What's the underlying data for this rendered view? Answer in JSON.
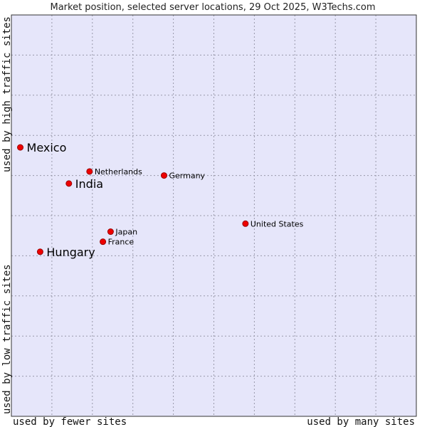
{
  "chart_data": {
    "type": "scatter",
    "title": "Market position, selected server locations, 29 Oct 2025, W3Techs.com",
    "xlabel_left": "used by fewer sites",
    "xlabel_right": "used by many sites",
    "ylabel_bottom": "used by low traffic sites",
    "ylabel_top": "used by high traffic sites",
    "xlim": [
      0,
      10
    ],
    "ylim": [
      0,
      10
    ],
    "grid": true,
    "points": [
      {
        "name": "Mexico",
        "x": 0.22,
        "y": 6.7,
        "highlight": true
      },
      {
        "name": "Netherlands",
        "x": 1.93,
        "y": 6.1,
        "highlight": false
      },
      {
        "name": "India",
        "x": 1.42,
        "y": 5.8,
        "highlight": true
      },
      {
        "name": "Germany",
        "x": 3.77,
        "y": 6.0,
        "highlight": false
      },
      {
        "name": "United States",
        "x": 5.78,
        "y": 4.8,
        "highlight": false
      },
      {
        "name": "Japan",
        "x": 2.45,
        "y": 4.6,
        "highlight": false
      },
      {
        "name": "France",
        "x": 2.26,
        "y": 4.35,
        "highlight": false
      },
      {
        "name": "Hungary",
        "x": 0.71,
        "y": 4.1,
        "highlight": true
      }
    ]
  },
  "colors": {
    "plot_bg": "#e6e6fa",
    "grid": "#9999aa",
    "marker": "#ee0000",
    "marker_edge": "#990000",
    "frame": "#333333"
  }
}
